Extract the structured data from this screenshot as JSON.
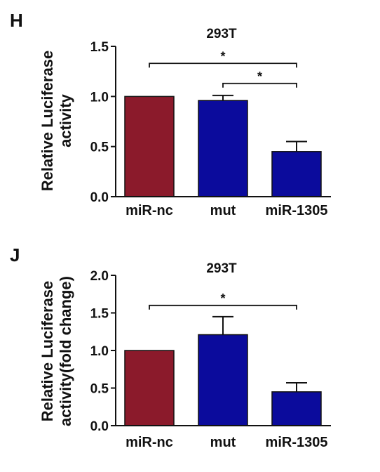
{
  "chart_data": [
    {
      "type": "bar",
      "panel": "H",
      "title": "293T",
      "ylabel_lines": [
        "Relative Luciferase",
        "activity"
      ],
      "xlabel": "",
      "categories": [
        "miR-nc",
        "mut",
        "miR-1305"
      ],
      "values": [
        1.0,
        0.96,
        0.45
      ],
      "errors": [
        0,
        0.05,
        0.1
      ],
      "bar_colors": [
        "#8b1a2b",
        "#0b0b9c",
        "#0b0b9c"
      ],
      "ylim": [
        0,
        1.5
      ],
      "yticks": [
        "0.0",
        "0.5",
        "1.0",
        "1.5"
      ],
      "grid": false,
      "legend": "none",
      "significance": [
        {
          "from": 0,
          "to": 2,
          "y": 1.33,
          "label": "*"
        },
        {
          "from": 1,
          "to": 2,
          "y": 1.13,
          "label": "*"
        }
      ]
    },
    {
      "type": "bar",
      "panel": "J",
      "title": "293T",
      "ylabel_lines": [
        "Relative Luciferase",
        "activity(fold change)"
      ],
      "xlabel": "",
      "categories": [
        "miR-nc",
        "mut",
        "miR-1305"
      ],
      "values": [
        1.0,
        1.21,
        0.45
      ],
      "errors": [
        0,
        0.24,
        0.12
      ],
      "bar_colors": [
        "#8b1a2b",
        "#0b0b9c",
        "#0b0b9c"
      ],
      "ylim": [
        0,
        2.0
      ],
      "yticks": [
        "0.0",
        "0.5",
        "1.0",
        "1.5",
        "2.0"
      ],
      "grid": false,
      "legend": "none",
      "significance": [
        {
          "from": 0,
          "to": 2,
          "y": 1.6,
          "label": "*"
        }
      ]
    }
  ]
}
